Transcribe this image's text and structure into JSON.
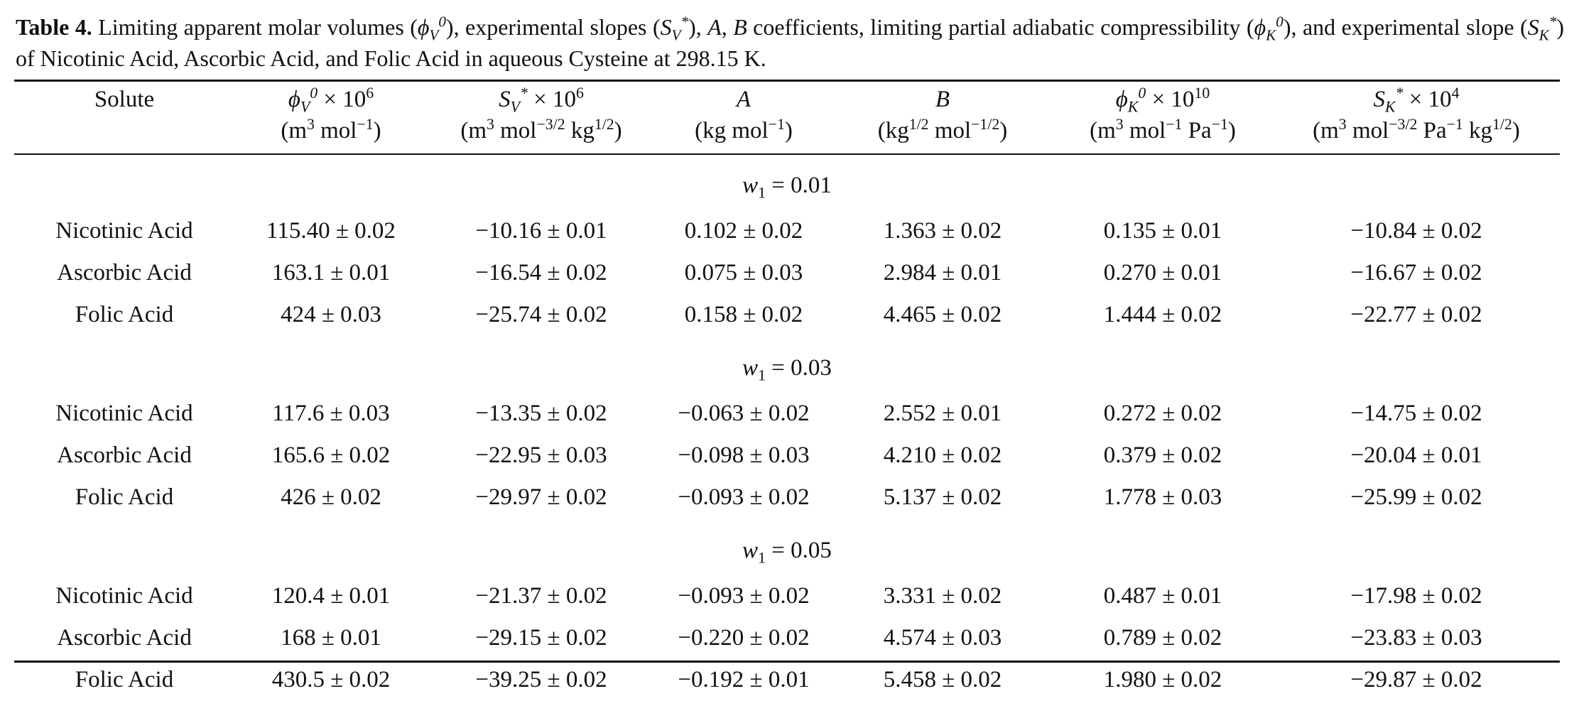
{
  "caption": {
    "label": "Table 4.",
    "text_1": "Limiting apparent molar volumes (",
    "text_2": "), experimental slopes (",
    "text_3": "), ",
    "text_4": ", ",
    "text_5": " coefficients, limiting partial adiabatic compressibility (",
    "text_6": "), and",
    "text_7": "experimental slope (",
    "text_8": ") of Nicotinic Acid, Ascorbic Acid, and Folic Acid in aqueous Cysteine at 298.15 K.",
    "sym_phi": "ϕ",
    "sym_S": "S",
    "sym_A": "A",
    "sym_B": "B",
    "sub_V": "V",
    "sub_K": "K",
    "sup_0": "0",
    "sup_star": "*"
  },
  "columns": [
    {
      "label": "Solute",
      "unit": ""
    },
    {
      "sym": "ϕ",
      "sub": "V",
      "sup": "0",
      "factor": "× 10",
      "exp": "6",
      "unit_html": "(m<sup>3</sup> mol<sup>−1</sup>)"
    },
    {
      "sym": "S",
      "sub": "V",
      "sup": "*",
      "factor": "× 10",
      "exp": "6",
      "unit_html": "(m<sup>3</sup> mol<sup>−3/2</sup> kg<sup>1/2</sup>)"
    },
    {
      "sym": "A",
      "unit_html": "(kg mol<sup>−1</sup>)"
    },
    {
      "sym": "B",
      "unit_html": "(kg<sup>1/2</sup> mol<sup>−1/2</sup>)"
    },
    {
      "sym": "ϕ",
      "sub": "K",
      "sup": "0",
      "factor": "× 10",
      "exp": "10",
      "unit_html": "(m<sup>3</sup> mol<sup>−1</sup> Pa<sup>−1</sup>)"
    },
    {
      "sym": "S",
      "sub": "K",
      "sup": "*",
      "factor": "× 10",
      "exp": "4",
      "unit_html": "(m<sup>3</sup> mol<sup>−3/2</sup> Pa<sup>−1</sup> kg<sup>1/2</sup>)"
    }
  ],
  "groups": [
    {
      "var": "w",
      "var_sub": "1",
      "value": "= 0.01",
      "rows": [
        [
          "Nicotinic Acid",
          "115.40 ± 0.02",
          "−10.16 ± 0.01",
          "0.102 ± 0.02",
          "1.363 ± 0.02",
          "0.135 ± 0.01",
          "−10.84 ± 0.02"
        ],
        [
          "Ascorbic Acid",
          "163.1 ± 0.01",
          "−16.54 ± 0.02",
          "0.075 ± 0.03",
          "2.984 ± 0.01",
          "0.270 ± 0.01",
          "−16.67 ± 0.02"
        ],
        [
          "Folic Acid",
          "424 ± 0.03",
          "−25.74 ± 0.02",
          "0.158 ± 0.02",
          "4.465 ± 0.02",
          "1.444 ± 0.02",
          "−22.77 ± 0.02"
        ]
      ]
    },
    {
      "var": "w",
      "var_sub": "1",
      "value": "= 0.03",
      "rows": [
        [
          "Nicotinic Acid",
          "117.6 ± 0.03",
          "−13.35 ± 0.02",
          "−0.063 ± 0.02",
          "2.552 ± 0.01",
          "0.272 ± 0.02",
          "−14.75 ± 0.02"
        ],
        [
          "Ascorbic Acid",
          "165.6 ± 0.02",
          "−22.95 ± 0.03",
          "−0.098 ± 0.03",
          "4.210 ± 0.02",
          "0.379 ± 0.02",
          "−20.04 ± 0.01"
        ],
        [
          "Folic Acid",
          "426 ± 0.02",
          "−29.97 ± 0.02",
          "−0.093 ± 0.02",
          "5.137 ± 0.02",
          "1.778 ± 0.03",
          "−25.99 ± 0.02"
        ]
      ]
    },
    {
      "var": "w",
      "var_sub": "1",
      "value": "= 0.05",
      "rows": [
        [
          "Nicotinic Acid",
          "120.4 ± 0.01",
          "−21.37 ± 0.02",
          "−0.093 ± 0.02",
          "3.331 ± 0.02",
          "0.487 ± 0.01",
          "−17.98 ± 0.02"
        ],
        [
          "Ascorbic Acid",
          "168 ± 0.01",
          "−29.15 ± 0.02",
          "−0.220 ± 0.02",
          "4.574 ± 0.03",
          "0.789 ± 0.02",
          "−23.83 ± 0.03"
        ],
        [
          "Folic Acid",
          "430.5 ± 0.02",
          "−39.25 ± 0.02",
          "−0.192 ± 0.01",
          "5.458 ± 0.02",
          "1.980 ± 0.02",
          "−29.87 ± 0.02"
        ]
      ]
    }
  ]
}
